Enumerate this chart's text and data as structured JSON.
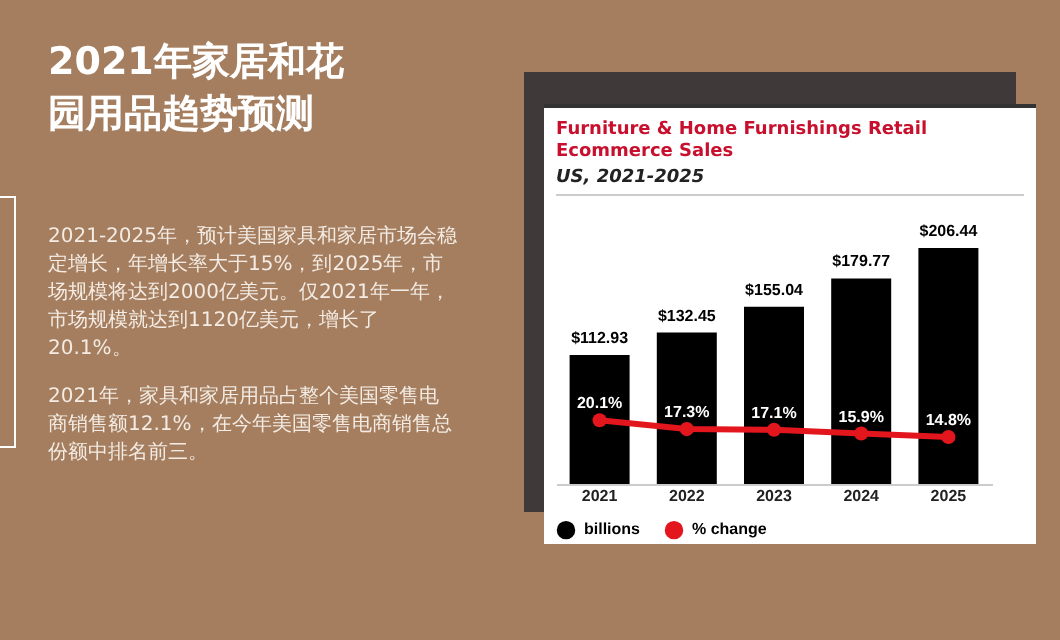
{
  "chart_data": {
    "type": "bar",
    "title": "Furniture & Home Furnishings Retail Ecommerce Sales",
    "subtitle": "US, 2021-2025",
    "categories": [
      "2021",
      "2022",
      "2023",
      "2024",
      "2025"
    ],
    "series": [
      {
        "name": "billions",
        "color": "#000000",
        "values": [
          112.93,
          132.45,
          155.04,
          179.77,
          206.44
        ],
        "value_labels": [
          "$112.93",
          "$132.45",
          "$155.04",
          "$179.77",
          "$206.44"
        ]
      },
      {
        "name": "% change",
        "type": "line",
        "axis": "y2",
        "color": "#e3161e",
        "values": [
          20.1,
          17.3,
          17.1,
          15.9,
          14.8
        ],
        "value_labels": [
          "20.1%",
          "17.3%",
          "17.1%",
          "15.9%",
          "14.8%"
        ]
      }
    ],
    "legend": "bottom left",
    "marker": "circle",
    "annotations": [
      "2021年家居和花园用品趋势预测",
      "2021-2025年，预计美国家具和家居市场会稳定增长，年增长率大于15%，到2025年，市场规模将达到2000亿美元。仅2021年一年，市场规模就达到1120亿美元，增长了20.1%。",
      "2021年，家具和家居用品占整个美国零售电商销售额12.1%，在今年美国零售电商销售总份额中排名前三。"
    ]
  }
}
